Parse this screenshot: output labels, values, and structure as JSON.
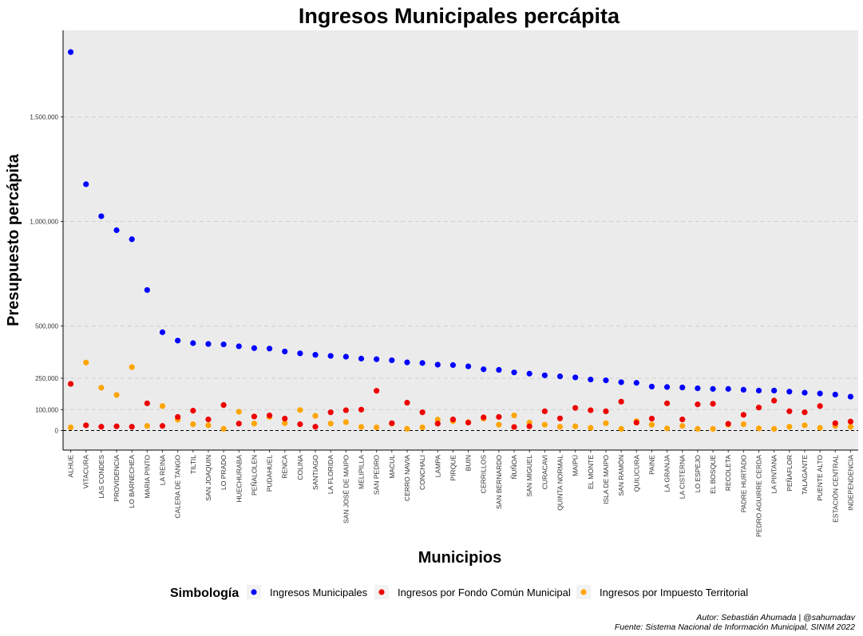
{
  "chart_data": {
    "type": "scatter",
    "title": "Ingresos Municipales percápita",
    "xlabel": "Municipios",
    "ylabel": "Presupuesto percápita",
    "ylim": [
      -95000,
      1920000
    ],
    "yticks": [
      0,
      100000,
      250000,
      500000,
      1000000,
      1500000
    ],
    "ytick_labels": [
      "0",
      "100,000",
      "250,000",
      "500,000",
      "1,000,000",
      "1,500,000"
    ],
    "grid": "horizontal dashed",
    "zero_line": "dashed",
    "legend_position": "bottom",
    "legend_title": "Simbología",
    "categories": [
      "ALHUE",
      "VITACURA",
      "LAS CONDES",
      "PROVIDENCIA",
      "LO BARNECHEA",
      "MARIA PINTO",
      "LA REINA",
      "CALERA DE TANGO",
      "TILTIL",
      "SAN JOAQUIN",
      "LO PRADO",
      "HUECHURABA",
      "PEÑALOLEN",
      "PUDAHUEL",
      "RENCA",
      "COLINA",
      "SANTIAGO",
      "LA FLORIDA",
      "SAN JOSÉ DE MAIPO",
      "MELIPILLA",
      "SAN PEDRO",
      "MACUL",
      "CERRO NAVIA",
      "CONCHALI",
      "LAMPA",
      "PIRQUE",
      "BUIN",
      "CERRILLOS",
      "SAN BERNARDO",
      "ÑUÑOA",
      "SAN MIGUEL",
      "CURACAVI",
      "QUINTA NORMAL",
      "MAIPÚ",
      "EL MONTE",
      "ISLA DE MAIPO",
      "SAN RAMÓN",
      "QUILICURA",
      "PAINE",
      "LA GRANJA",
      "LA CISTERNA",
      "LO ESPEJO",
      "EL BOSQUE",
      "RECOLETA",
      "PADRE HURTADO",
      "PEDRO AGUIRRE CERDA",
      "LA PINTANA",
      "PEÑAFLOR",
      "TALAGANTE",
      "PUENTE ALTO",
      "ESTACIÓN CENTRAL",
      "INDEPENDENCIA"
    ],
    "series": [
      {
        "name": "Ingresos Municipales",
        "color": "#0000ff",
        "values": [
          1810000,
          1178000,
          1025000,
          958000,
          915000,
          672000,
          470000,
          430000,
          418000,
          414000,
          412000,
          403000,
          394000,
          392000,
          378000,
          369000,
          362000,
          357000,
          353000,
          344000,
          341000,
          336000,
          326000,
          323000,
          315000,
          313000,
          307000,
          293000,
          290000,
          278000,
          272000,
          264000,
          259000,
          254000,
          244000,
          240000,
          231000,
          228000,
          210000,
          208000,
          206000,
          202000,
          199000,
          199000,
          195000,
          191000,
          191000,
          186000,
          181000,
          177000,
          172000,
          162000
        ]
      },
      {
        "name": "Ingresos por Fondo Común Municipal",
        "color": "#ee0000",
        "values": [
          223000,
          25000,
          18000,
          20000,
          18000,
          130000,
          22000,
          65000,
          95000,
          53000,
          122000,
          33000,
          67000,
          72000,
          57000,
          30000,
          18000,
          87000,
          97000,
          100000,
          190000,
          35000,
          133000,
          87000,
          33000,
          53000,
          38000,
          63000,
          65000,
          17000,
          20000,
          92000,
          58000,
          108000,
          97000,
          92000,
          138000,
          38000,
          57000,
          130000,
          53000,
          125000,
          128000,
          32000,
          75000,
          110000,
          143000,
          92000,
          87000,
          117000,
          35000,
          43000
        ]
      },
      {
        "name": "Ingresos por Impuesto Territorial",
        "color": "#ffa500",
        "values": [
          15000,
          325000,
          205000,
          170000,
          303000,
          22000,
          117000,
          52000,
          30000,
          25000,
          8000,
          90000,
          33000,
          65000,
          35000,
          98000,
          70000,
          33000,
          40000,
          17000,
          15000,
          33000,
          8000,
          15000,
          52000,
          45000,
          40000,
          57000,
          28000,
          72000,
          38000,
          28000,
          18000,
          20000,
          13000,
          35000,
          8000,
          45000,
          28000,
          10000,
          22000,
          8000,
          8000,
          28000,
          30000,
          10000,
          8000,
          18000,
          25000,
          13000,
          22000,
          18000
        ]
      }
    ]
  },
  "caption": {
    "author": "Autor: Sebastián Ahumada | @sahumadav",
    "source": "Fuente: Sistema Nacional de Información Municipal, SINIM 2022"
  }
}
